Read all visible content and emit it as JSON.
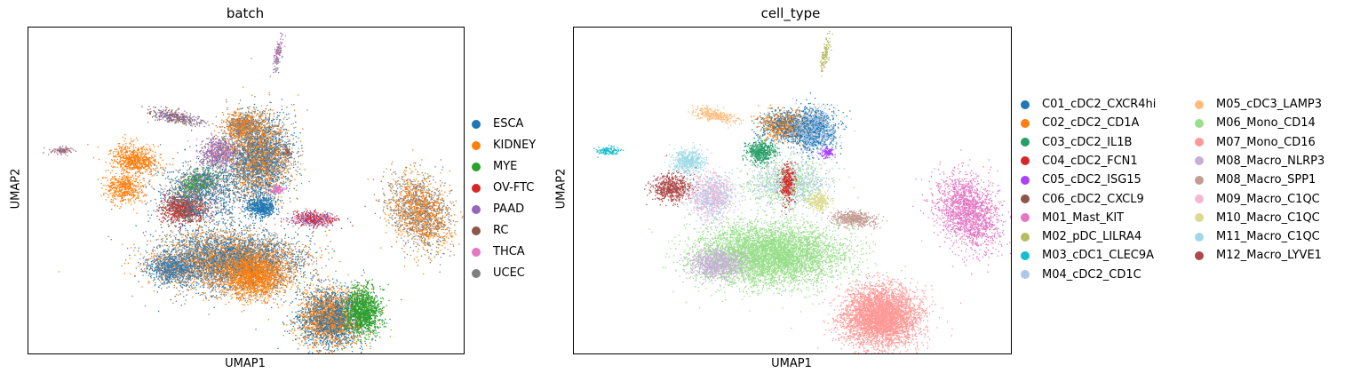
{
  "chart_data": [
    {
      "type": "scatter",
      "title": "batch",
      "xlabel": "UMAP1",
      "ylabel": "UMAP2",
      "grid": false,
      "legend_placement": "right",
      "series": [
        {
          "name": "ESCA",
          "color": "#1f77b4"
        },
        {
          "name": "KIDNEY",
          "color": "#ff7f0e"
        },
        {
          "name": "MYE",
          "color": "#2ca02c"
        },
        {
          "name": "OV-FTC",
          "color": "#d62728"
        },
        {
          "name": "PAAD",
          "color": "#9467bd"
        },
        {
          "name": "RC",
          "color": "#8c564b"
        },
        {
          "name": "THCA",
          "color": "#e377c2"
        },
        {
          "name": "UCEC",
          "color": "#7f7f7f"
        }
      ]
    },
    {
      "type": "scatter",
      "title": "cell_type",
      "xlabel": "UMAP1",
      "ylabel": "UMAP2",
      "grid": false,
      "legend_placement": "right",
      "series": [
        {
          "name": "C01_cDC2_CXCR4hi",
          "color": "#1f77b4"
        },
        {
          "name": "C02_cDC2_CD1A",
          "color": "#ff7f0e"
        },
        {
          "name": "C03_cDC2_IL1B",
          "color": "#279e68"
        },
        {
          "name": "C04_cDC2_FCN1",
          "color": "#d62728"
        },
        {
          "name": "C05_cDC2_ISG15",
          "color": "#aa40fc"
        },
        {
          "name": "C06_cDC2_CXCL9",
          "color": "#8c564b"
        },
        {
          "name": "M01_Mast_KIT",
          "color": "#e377c2"
        },
        {
          "name": "M02_pDC_LILRA4",
          "color": "#b5bd61"
        },
        {
          "name": "M03_cDC1_CLEC9A",
          "color": "#17becf"
        },
        {
          "name": "M04_cDC2_CD1C",
          "color": "#aec7e8"
        },
        {
          "name": "M05_cDC3_LAMP3",
          "color": "#ffbb78"
        },
        {
          "name": "M06_Mono_CD14",
          "color": "#98df8a"
        },
        {
          "name": "M07_Mono_CD16",
          "color": "#ff9896"
        },
        {
          "name": "M08_Macro_NLRP3",
          "color": "#c5b0d5"
        },
        {
          "name": "M08_Macro_SPP1",
          "color": "#c49c94"
        },
        {
          "name": "M09_Macro_C1QC",
          "color": "#f7b6d2"
        },
        {
          "name": "M10_Macro_C1QC",
          "color": "#dbdb8d"
        },
        {
          "name": "M11_Macro_C1QC",
          "color": "#9edae5"
        },
        {
          "name": "M12_Macro_LYVE1",
          "color": "#ad494a"
        }
      ]
    }
  ]
}
